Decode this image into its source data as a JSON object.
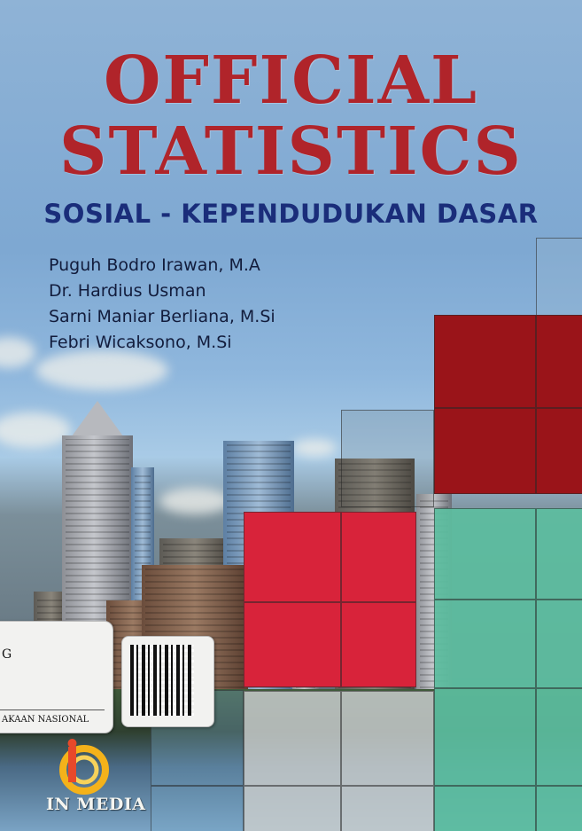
{
  "book": {
    "title_line1": "OFFICIAL",
    "title_line2": "STATISTICS",
    "subtitle": "SOSIAL - KEPENDUDUKAN DASAR",
    "authors": [
      "Puguh Bodro Irawan, M.A",
      "Dr. Hardius Usman",
      "Sarni Maniar Berliana, M.Si",
      "Febri Wicaksono, M.Si"
    ],
    "publisher": "IN MEDIA"
  },
  "stickers": {
    "library_label_letter": "G",
    "library_label_text": "AKAAN NASIONAL"
  },
  "colors": {
    "title": "#b0242a",
    "subtitle": "#1a2d7a",
    "dark_red_block": "#9a1419",
    "red_block": "#d8233a",
    "teal_block": "#5cbea0"
  },
  "icons": {
    "publisher_logo": "in-media-logo-icon",
    "qr_code": "qr-code-icon"
  }
}
